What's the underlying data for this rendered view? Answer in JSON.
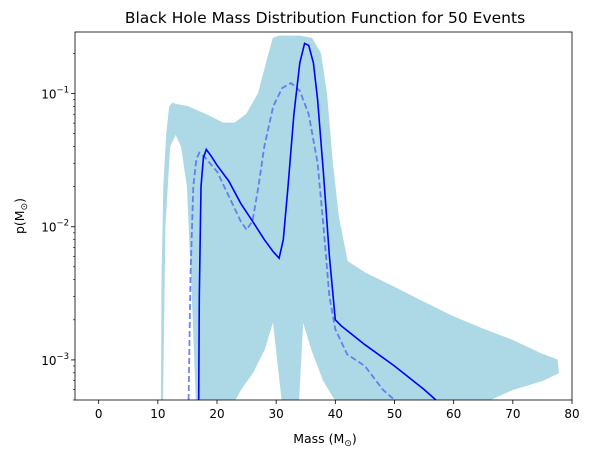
{
  "chart_data": {
    "type": "line",
    "title": "Black Hole Mass Distribution Function for 50 Events",
    "xlabel": "Mass (M",
    "xlabel_sub": "⊙",
    "xlabel_close": ")",
    "ylabel": "p(M",
    "ylabel_sub": "⊙",
    "ylabel_close": ")",
    "xlim": [
      -4,
      80
    ],
    "ylim": [
      0.0005,
      0.29
    ],
    "yscale": "log",
    "grid": false,
    "x_ticks": [
      0,
      10,
      20,
      30,
      40,
      50,
      60,
      70,
      80
    ],
    "y_ticks": [
      {
        "value": 0.001,
        "base": "10",
        "exp": "−3"
      },
      {
        "value": 0.01,
        "base": "10",
        "exp": "−2"
      },
      {
        "value": 0.1,
        "base": "10",
        "exp": "−1"
      }
    ],
    "colors": {
      "samples": "#add8e6",
      "median": "#0000ff",
      "dashed": "#5470f0"
    },
    "band": {
      "description": "posterior sample curves",
      "color": "#add8e6",
      "upper": [
        [
          10.6,
          0.0005
        ],
        [
          10.7,
          0.004
        ],
        [
          11.0,
          0.02
        ],
        [
          11.5,
          0.05
        ],
        [
          12.0,
          0.08
        ],
        [
          12.5,
          0.085
        ],
        [
          13.0,
          0.083
        ],
        [
          15,
          0.08
        ],
        [
          18,
          0.07
        ],
        [
          21,
          0.06
        ],
        [
          23,
          0.06
        ],
        [
          25,
          0.07
        ],
        [
          27,
          0.1
        ],
        [
          28.5,
          0.18
        ],
        [
          29.5,
          0.26
        ],
        [
          30.5,
          0.27
        ],
        [
          34,
          0.27
        ],
        [
          36,
          0.26
        ],
        [
          37.5,
          0.2
        ],
        [
          38.5,
          0.1
        ],
        [
          39.5,
          0.03
        ],
        [
          40.5,
          0.012
        ],
        [
          42,
          0.0055
        ],
        [
          45,
          0.0045
        ],
        [
          50,
          0.0035
        ],
        [
          55,
          0.0027
        ],
        [
          60,
          0.0021
        ],
        [
          65,
          0.0017
        ],
        [
          70,
          0.0014
        ],
        [
          75,
          0.0011
        ],
        [
          77.5,
          0.001
        ],
        [
          77.7,
          0.0008
        ]
      ],
      "lower": [
        [
          77.7,
          0.0008
        ],
        [
          75,
          0.0007
        ],
        [
          70,
          0.0006
        ],
        [
          66,
          0.0005
        ],
        [
          40,
          0.0005
        ],
        [
          38,
          0.0007
        ],
        [
          36,
          0.0012
        ],
        [
          34.5,
          0.002
        ],
        [
          33.8,
          0.0005
        ],
        [
          31,
          0.0005
        ],
        [
          29.5,
          0.002
        ],
        [
          28,
          0.0012
        ],
        [
          26,
          0.0008
        ],
        [
          24,
          0.0006
        ],
        [
          23,
          0.0005
        ],
        [
          16.5,
          0.0005
        ],
        [
          16,
          0.002
        ],
        [
          15,
          0.02
        ],
        [
          14,
          0.04
        ],
        [
          13,
          0.05
        ],
        [
          12,
          0.04
        ],
        [
          11.2,
          0.01
        ],
        [
          10.8,
          0.0005
        ]
      ]
    },
    "series": [
      {
        "style": "solid",
        "color": "#0000ff",
        "points": [
          [
            16.9,
            0.0005
          ],
          [
            17.0,
            0.003
          ],
          [
            17.3,
            0.02
          ],
          [
            17.7,
            0.033
          ],
          [
            18.2,
            0.038
          ],
          [
            19,
            0.034
          ],
          [
            20,
            0.029
          ],
          [
            22,
            0.022
          ],
          [
            24,
            0.015
          ],
          [
            26,
            0.011
          ],
          [
            28,
            0.008
          ],
          [
            29.5,
            0.0065
          ],
          [
            30.5,
            0.0058
          ],
          [
            31.2,
            0.008
          ],
          [
            32,
            0.02
          ],
          [
            33,
            0.07
          ],
          [
            34,
            0.17
          ],
          [
            34.8,
            0.238
          ],
          [
            35.5,
            0.23
          ],
          [
            36.3,
            0.17
          ],
          [
            37,
            0.09
          ],
          [
            38,
            0.025
          ],
          [
            39,
            0.006
          ],
          [
            40,
            0.002
          ],
          [
            41,
            0.0018
          ],
          [
            45,
            0.0013
          ],
          [
            50,
            0.0009
          ],
          [
            55,
            0.0006
          ],
          [
            57,
            0.0005
          ]
        ]
      },
      {
        "style": "dashed",
        "color": "#5470f0",
        "points": [
          [
            15.2,
            0.0005
          ],
          [
            15.5,
            0.004
          ],
          [
            16,
            0.02
          ],
          [
            16.5,
            0.032
          ],
          [
            17,
            0.036
          ],
          [
            18,
            0.033
          ],
          [
            20,
            0.026
          ],
          [
            22,
            0.017
          ],
          [
            24,
            0.011
          ],
          [
            25,
            0.0095
          ],
          [
            26,
            0.011
          ],
          [
            27,
            0.02
          ],
          [
            28,
            0.04
          ],
          [
            29.5,
            0.08
          ],
          [
            31,
            0.11
          ],
          [
            32.5,
            0.12
          ],
          [
            34,
            0.105
          ],
          [
            35.5,
            0.07
          ],
          [
            37,
            0.03
          ],
          [
            38,
            0.01
          ],
          [
            39,
            0.003
          ],
          [
            40,
            0.0017
          ],
          [
            42,
            0.0011
          ],
          [
            45,
            0.0009
          ],
          [
            48,
            0.0006
          ],
          [
            50,
            0.0005
          ]
        ]
      }
    ]
  }
}
